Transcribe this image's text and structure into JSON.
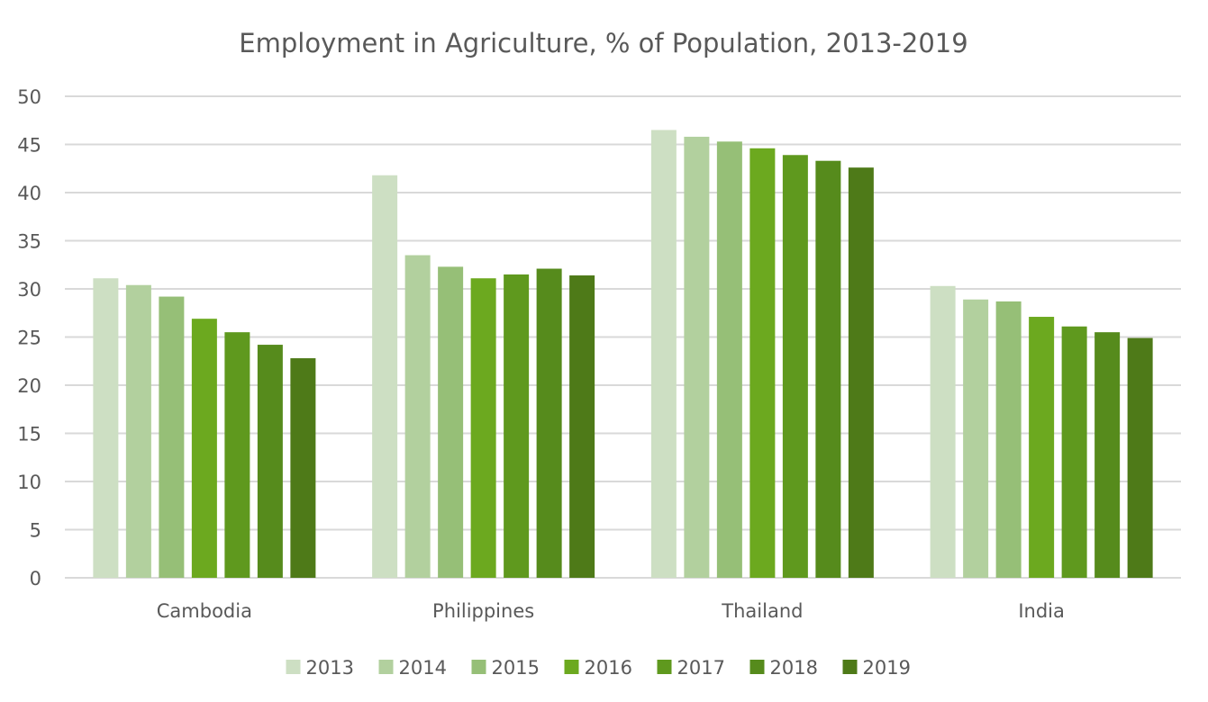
{
  "chart_data": {
    "type": "bar",
    "title": "Employment in Agriculture, % of Population, 2013-2019",
    "xlabel": "",
    "ylabel": "",
    "ylim": [
      0,
      50
    ],
    "yticks": [
      0,
      5,
      10,
      15,
      20,
      25,
      30,
      35,
      40,
      45,
      50
    ],
    "grid": true,
    "legend_position": "bottom",
    "categories": [
      "Cambodia",
      "Philippines",
      "Thailand",
      "India"
    ],
    "series": [
      {
        "name": "2013",
        "color": "#cddfc3",
        "values": [
          31.1,
          41.8,
          46.5,
          30.3
        ]
      },
      {
        "name": "2014",
        "color": "#b2d09e",
        "values": [
          30.4,
          33.5,
          45.8,
          28.9
        ]
      },
      {
        "name": "2015",
        "color": "#96bf77",
        "values": [
          29.2,
          32.3,
          45.3,
          28.7
        ]
      },
      {
        "name": "2016",
        "color": "#6ca91f",
        "values": [
          26.9,
          31.1,
          44.6,
          27.1
        ]
      },
      {
        "name": "2017",
        "color": "#5f991e",
        "values": [
          25.5,
          31.5,
          43.9,
          26.1
        ]
      },
      {
        "name": "2018",
        "color": "#568b1c",
        "values": [
          24.2,
          32.1,
          43.3,
          25.5
        ]
      },
      {
        "name": "2019",
        "color": "#4e7a18",
        "values": [
          22.8,
          31.4,
          42.6,
          24.9
        ]
      }
    ]
  }
}
